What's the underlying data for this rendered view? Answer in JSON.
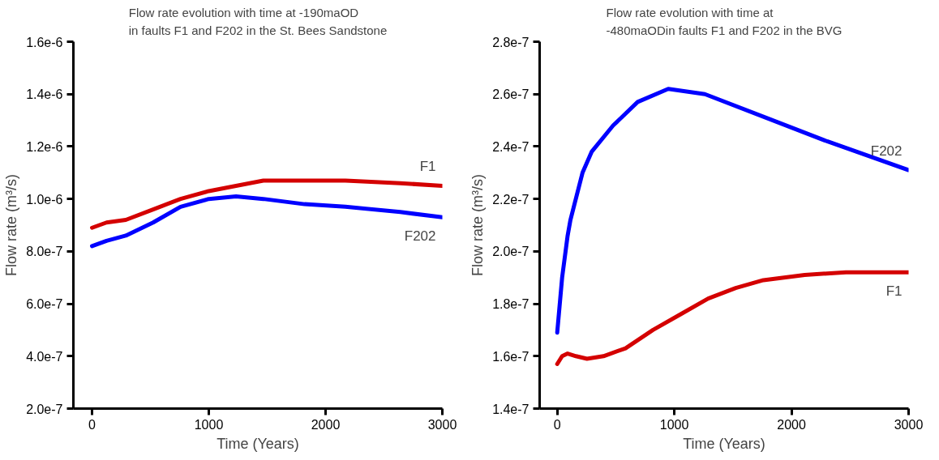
{
  "chart_data": [
    {
      "type": "line",
      "title": "Flow rate evolution with time at -190maOD\nin faults F1 and F202 in the St. Bees Sandstone",
      "xlabel": "Time (Years)",
      "ylabel": "Flow rate (m³/s)",
      "xlim": [
        -160,
        3000
      ],
      "ylim": [
        2e-07,
        1.6e-06
      ],
      "xticks": [
        0,
        1000,
        2000,
        3000
      ],
      "yticks": [
        {
          "value": 2e-07,
          "label": "2.0e-7"
        },
        {
          "value": 4e-07,
          "label": "4.0e-7"
        },
        {
          "value": 6e-07,
          "label": "6.0e-7"
        },
        {
          "value": 8e-07,
          "label": "8.0e-7"
        },
        {
          "value": 1e-06,
          "label": "1.0e-6"
        },
        {
          "value": 1.2e-06,
          "label": "1.2e-6"
        },
        {
          "value": 1.4e-06,
          "label": "1.4e-6"
        },
        {
          "value": 1.6e-06,
          "label": "1.6e-6"
        }
      ],
      "marker": "none",
      "line_style": "solid",
      "series": [
        {
          "name": "F1",
          "color": "#d40000",
          "x": [
            0,
            124,
            289,
            523,
            758,
            1000,
            1233,
            1467,
            1749,
            2170,
            2640,
            3000
          ],
          "values": [
            8.9e-07,
            9.1e-07,
            9.2e-07,
            9.6e-07,
            1e-06,
            1.03e-06,
            1.05e-06,
            1.07e-06,
            1.07e-06,
            1.07e-06,
            1.06e-06,
            1.05e-06
          ]
        },
        {
          "name": "F202",
          "color": "#0000ff",
          "x": [
            0,
            124,
            289,
            523,
            758,
            1000,
            1233,
            1467,
            1820,
            2170,
            2640,
            3000
          ],
          "values": [
            8.2e-07,
            8.4e-07,
            8.6e-07,
            9.1e-07,
            9.7e-07,
            1e-06,
            1.01e-06,
            1e-06,
            9.8e-07,
            9.7e-07,
            9.5e-07,
            9.3e-07
          ]
        }
      ]
    },
    {
      "type": "line",
      "title": "Flow rate evolution with time at\n-480maODin faults F1 and F202 in the BVG",
      "xlabel": "Time (Years)",
      "ylabel": "Flow rate (m³/s)",
      "xlim": [
        -150,
        3000
      ],
      "ylim": [
        1.4e-07,
        2.8e-07
      ],
      "xticks": [
        0,
        1000,
        2000,
        3000
      ],
      "yticks": [
        {
          "value": 1.4e-07,
          "label": "1.4e-7"
        },
        {
          "value": 1.6e-07,
          "label": "1.6e-7"
        },
        {
          "value": 1.8e-07,
          "label": "1.8e-7"
        },
        {
          "value": 2e-07,
          "label": "2.0e-7"
        },
        {
          "value": 2.2e-07,
          "label": "2.2e-7"
        },
        {
          "value": 2.4e-07,
          "label": "2.4e-7"
        },
        {
          "value": 2.6e-07,
          "label": "2.6e-7"
        },
        {
          "value": 2.8e-07,
          "label": "2.8e-7"
        }
      ],
      "marker": "none",
      "line_style": "solid",
      "series": [
        {
          "name": "F202",
          "color": "#0000ff",
          "x": [
            0,
            42,
            89,
            113,
            216,
            294,
            477,
            687,
            948,
            1261,
            1783,
            2304,
            3000
          ],
          "values": [
            1.69e-07,
            1.9e-07,
            2.06e-07,
            2.12e-07,
            2.3e-07,
            2.38e-07,
            2.48e-07,
            2.57e-07,
            2.62e-07,
            2.6e-07,
            2.51e-07,
            2.42e-07,
            2.31e-07
          ]
        },
        {
          "name": "F1",
          "color": "#d40000",
          "x": [
            0,
            42,
            89,
            160,
            254,
            395,
            583,
            818,
            1054,
            1289,
            1524,
            1760,
            2113,
            2465,
            3000
          ],
          "values": [
            1.57e-07,
            1.6e-07,
            1.61e-07,
            1.6e-07,
            1.59e-07,
            1.6e-07,
            1.63e-07,
            1.7e-07,
            1.76e-07,
            1.82e-07,
            1.86e-07,
            1.89e-07,
            1.91e-07,
            1.92e-07,
            1.92e-07
          ]
        }
      ]
    }
  ]
}
